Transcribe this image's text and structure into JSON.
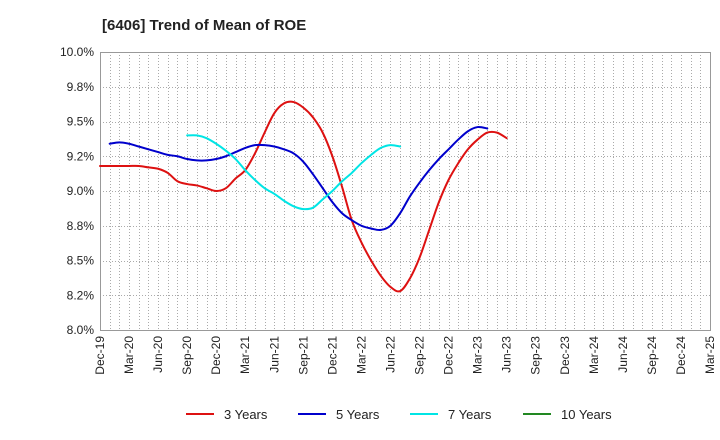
{
  "chart_data": {
    "type": "line",
    "title": "[6406]  Trend of Mean of ROE",
    "xlabel": "",
    "ylabel": "",
    "ylim": [
      8.0,
      10.0
    ],
    "y_ticks": [
      "10.0%",
      "9.8%",
      "9.5%",
      "9.2%",
      "9.0%",
      "8.8%",
      "8.5%",
      "8.2%",
      "8.0%"
    ],
    "y_tick_values": [
      10.0,
      9.75,
      9.5,
      9.25,
      9.0,
      8.75,
      8.5,
      8.25,
      8.0
    ],
    "x_ticks": [
      "Dec-19",
      "Mar-20",
      "Jun-20",
      "Sep-20",
      "Dec-20",
      "Mar-21",
      "Jun-21",
      "Sep-21",
      "Dec-21",
      "Mar-22",
      "Jun-22",
      "Sep-22",
      "Dec-22",
      "Mar-23",
      "Jun-23",
      "Sep-23",
      "Dec-23",
      "Mar-24",
      "Jun-24",
      "Sep-24",
      "Dec-24",
      "Mar-25"
    ],
    "grid": true,
    "legend_position": "bottom",
    "series": [
      {
        "name": "3 Years",
        "color": "#dd1111",
        "start_month_index": 0,
        "values": [
          9.18,
          9.18,
          9.18,
          9.18,
          9.18,
          9.17,
          9.16,
          9.13,
          9.07,
          9.05,
          9.04,
          9.02,
          9.0,
          9.02,
          9.09,
          9.15,
          9.27,
          9.42,
          9.56,
          9.63,
          9.64,
          9.6,
          9.53,
          9.42,
          9.25,
          9.03,
          8.79,
          8.63,
          8.5,
          8.39,
          8.31,
          8.28,
          8.37,
          8.52,
          8.72,
          8.92,
          9.08,
          9.2,
          9.3,
          9.37,
          9.42,
          9.42,
          9.38
        ]
      },
      {
        "name": "5 Years",
        "color": "#0000cc",
        "start_month_index": 1,
        "values": [
          9.34,
          9.35,
          9.34,
          9.32,
          9.3,
          9.28,
          9.26,
          9.25,
          9.23,
          9.22,
          9.22,
          9.23,
          9.25,
          9.28,
          9.31,
          9.33,
          9.33,
          9.32,
          9.3,
          9.27,
          9.21,
          9.12,
          9.02,
          8.92,
          8.84,
          8.79,
          8.75,
          8.73,
          8.72,
          8.75,
          8.84,
          8.96,
          9.06,
          9.15,
          9.23,
          9.3,
          9.37,
          9.43,
          9.46,
          9.45
        ]
      },
      {
        "name": "7 Years",
        "color": "#00e5e5",
        "start_month_index": 9,
        "values": [
          9.4,
          9.4,
          9.38,
          9.34,
          9.29,
          9.23,
          9.15,
          9.08,
          9.02,
          8.98,
          8.93,
          8.89,
          8.87,
          8.88,
          8.94,
          9.0,
          9.07,
          9.13,
          9.2,
          9.26,
          9.31,
          9.33,
          9.32
        ]
      },
      {
        "name": "10 Years",
        "color": "#228822",
        "start_month_index": 0,
        "values": []
      }
    ]
  }
}
